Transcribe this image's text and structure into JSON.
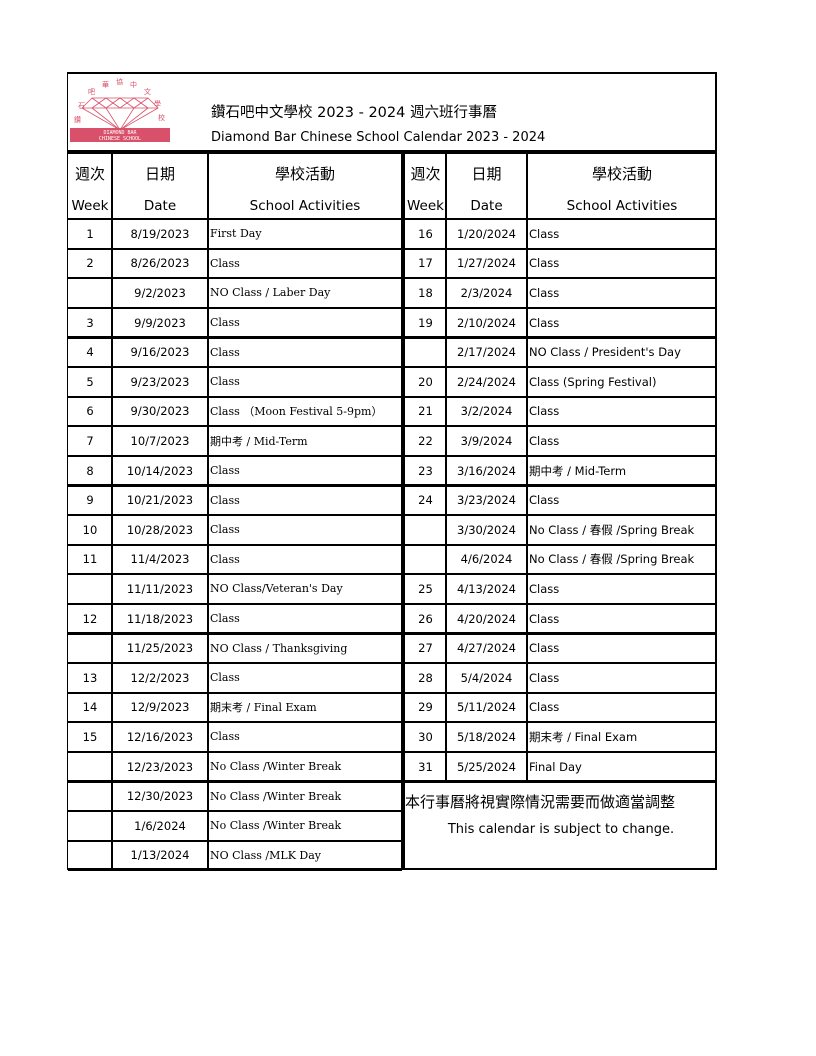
{
  "header": {
    "title_zh": "鑽石吧中文學校 2023 - 2024 週六班行事曆",
    "title_en": "Diamond Bar Chinese School Calendar 2023 - 2024",
    "logo_text": "DIAMOND BAR CHINESE SCHOOL",
    "logo_color": "#d9506a"
  },
  "columns": {
    "week_zh": "週次",
    "week_en": "Week",
    "date_zh": "日期",
    "date_en": "Date",
    "activity_zh": "學校活動",
    "activity_en": "School Activities"
  },
  "left_rows": [
    {
      "week": "1",
      "date": "8/19/2023",
      "activity": "First  Day"
    },
    {
      "week": "2",
      "date": "8/26/2023",
      "activity": "Class"
    },
    {
      "week": "",
      "date": "9/2/2023",
      "activity": "NO Class / Laber Day"
    },
    {
      "week": "3",
      "date": "9/9/2023",
      "activity": "Class"
    },
    {
      "week": "4",
      "date": "9/16/2023",
      "activity": "Class"
    },
    {
      "week": "5",
      "date": "9/23/2023",
      "activity": "Class"
    },
    {
      "week": "6",
      "date": "9/30/2023",
      "activity": "Class （Moon Festival 5-9pm）"
    },
    {
      "week": "7",
      "date": "10/7/2023",
      "activity": "期中考 / Mid-Term"
    },
    {
      "week": "8",
      "date": "10/14/2023",
      "activity": "Class"
    },
    {
      "week": "9",
      "date": "10/21/2023",
      "activity": "Class"
    },
    {
      "week": "10",
      "date": "10/28/2023",
      "activity": "Class"
    },
    {
      "week": "11",
      "date": "11/4/2023",
      "activity": "Class"
    },
    {
      "week": "",
      "date": "11/11/2023",
      "activity": "NO Class/Veteran's Day"
    },
    {
      "week": "12",
      "date": "11/18/2023",
      "activity": "Class"
    },
    {
      "week": "",
      "date": "11/25/2023",
      "activity": "NO Class / Thanksgiving"
    },
    {
      "week": "13",
      "date": "12/2/2023",
      "activity": "Class"
    },
    {
      "week": "14",
      "date": "12/9/2023",
      "activity": "期末考 / Final Exam"
    },
    {
      "week": "15",
      "date": "12/16/2023",
      "activity": "Class"
    },
    {
      "week": "",
      "date": "12/23/2023",
      "activity": "No Class /Winter Break"
    },
    {
      "week": "",
      "date": "12/30/2023",
      "activity": "No Class /Winter Break"
    },
    {
      "week": "",
      "date": "1/6/2024",
      "activity": "No Class /Winter Break"
    },
    {
      "week": "",
      "date": "1/13/2024",
      "activity": "NO Class /MLK Day"
    }
  ],
  "right_rows": [
    {
      "week": "16",
      "date": "1/20/2024",
      "activity": "Class"
    },
    {
      "week": "17",
      "date": "1/27/2024",
      "activity": "Class"
    },
    {
      "week": "18",
      "date": "2/3/2024",
      "activity": "Class"
    },
    {
      "week": "19",
      "date": "2/10/2024",
      "activity": "Class"
    },
    {
      "week": "",
      "date": "2/17/2024",
      "activity": "NO Class / President's Day"
    },
    {
      "week": "20",
      "date": "2/24/2024",
      "activity": "Class (Spring Festival)"
    },
    {
      "week": "21",
      "date": "3/2/2024",
      "activity": "Class"
    },
    {
      "week": "22",
      "date": "3/9/2024",
      "activity": "Class"
    },
    {
      "week": "23",
      "date": "3/16/2024",
      "activity": "期中考 / Mid-Term"
    },
    {
      "week": "24",
      "date": "3/23/2024",
      "activity": "Class"
    },
    {
      "week": "",
      "date": "3/30/2024",
      "activity": "No Class / 春假  /Spring Break"
    },
    {
      "week": "",
      "date": "4/6/2024",
      "activity": "No Class / 春假  /Spring Break"
    },
    {
      "week": "25",
      "date": "4/13/2024",
      "activity": "Class"
    },
    {
      "week": "26",
      "date": "4/20/2024",
      "activity": "Class"
    },
    {
      "week": "27",
      "date": "4/27/2024",
      "activity": "Class"
    },
    {
      "week": "28",
      "date": "5/4/2024",
      "activity": "Class"
    },
    {
      "week": "29",
      "date": "5/11/2024",
      "activity": "Class"
    },
    {
      "week": "30",
      "date": "5/18/2024",
      "activity": "期末考 / Final Exam"
    },
    {
      "week": "31",
      "date": "5/25/2024",
      "activity": "Final Day"
    }
  ],
  "note": {
    "zh": "本行事曆將視實際情況需要而做適當調整",
    "en": "This calendar is subject to change."
  }
}
